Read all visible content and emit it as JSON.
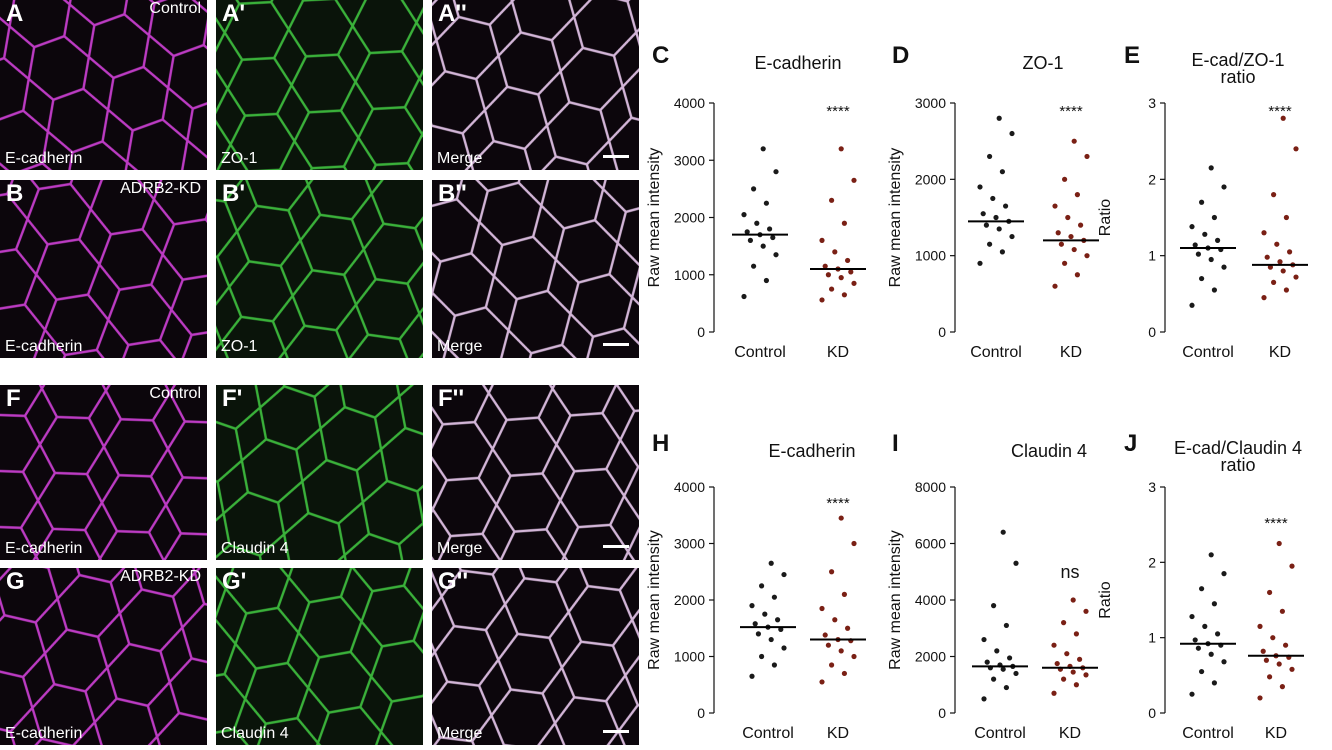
{
  "panels": [
    {
      "label": "A",
      "corner_text": "Control",
      "bottom_text": "E-cadherin",
      "channel": "magenta",
      "scale_bar": false
    },
    {
      "label": "A'",
      "bottom_text": "ZO-1",
      "channel": "green",
      "scale_bar": false
    },
    {
      "label": "A''",
      "bottom_text": "Merge",
      "channel": "merge",
      "scale_bar": true
    },
    {
      "label": "B",
      "corner_text": "ADRB2-KD",
      "bottom_text": "E-cadherin",
      "channel": "magenta",
      "scale_bar": false
    },
    {
      "label": "B'",
      "bottom_text": "ZO-1",
      "channel": "green",
      "scale_bar": false
    },
    {
      "label": "B''",
      "bottom_text": "Merge",
      "channel": "merge",
      "scale_bar": true
    },
    {
      "label": "F",
      "corner_text": "Control",
      "bottom_text": "E-cadherin",
      "channel": "magenta",
      "scale_bar": false
    },
    {
      "label": "F'",
      "bottom_text": "Claudin 4",
      "channel": "green",
      "scale_bar": false
    },
    {
      "label": "F''",
      "bottom_text": "Merge",
      "channel": "merge",
      "scale_bar": true
    },
    {
      "label": "G",
      "corner_text": "ADRB2-KD",
      "bottom_text": "E-cadherin",
      "channel": "magenta",
      "scale_bar": false
    },
    {
      "label": "G'",
      "bottom_text": "Claudin 4",
      "channel": "green",
      "scale_bar": false
    },
    {
      "label": "G''",
      "bottom_text": "Merge",
      "channel": "merge",
      "scale_bar": true
    }
  ],
  "chart_data": [
    {
      "type": "swarm",
      "panel_label": "C",
      "title": "E-cadherin",
      "y_label": "Raw mean intensity",
      "categories": [
        "Control",
        "KD"
      ],
      "groups": [
        {
          "color": "#1a1a1a",
          "median": 1700,
          "values": [
            620,
            900,
            1150,
            1350,
            1500,
            1600,
            1650,
            1700,
            1750,
            1800,
            1900,
            2050,
            2250,
            2500,
            2800,
            3200
          ]
        },
        {
          "color": "#7a2015",
          "median": 1100,
          "values": [
            560,
            650,
            750,
            850,
            950,
            1000,
            1050,
            1100,
            1150,
            1250,
            1400,
            1600,
            1900,
            2300,
            2650,
            3200
          ]
        }
      ],
      "significance": "****",
      "ylim": [
        0,
        4000
      ],
      "yticks": [
        0,
        1000,
        2000,
        3000,
        4000
      ]
    },
    {
      "type": "swarm",
      "panel_label": "D",
      "title": "ZO-1",
      "y_label": "Raw mean intensity",
      "categories": [
        "Control",
        "KD"
      ],
      "groups": [
        {
          "color": "#1a1a1a",
          "median": 1450,
          "values": [
            900,
            1050,
            1150,
            1250,
            1350,
            1400,
            1450,
            1500,
            1550,
            1650,
            1750,
            1900,
            2100,
            2300,
            2600,
            2800
          ]
        },
        {
          "color": "#7a2015",
          "median": 1200,
          "values": [
            600,
            750,
            900,
            1000,
            1080,
            1150,
            1200,
            1250,
            1300,
            1400,
            1500,
            1650,
            1800,
            2000,
            2300,
            2500
          ]
        }
      ],
      "significance": "****",
      "ylim": [
        0,
        3000
      ],
      "yticks": [
        0,
        1000,
        2000,
        3000
      ]
    },
    {
      "type": "swarm",
      "panel_label": "E",
      "title": "E-cad/ZO-1 ratio",
      "y_label": "Ratio",
      "categories": [
        "Control",
        "KD"
      ],
      "groups": [
        {
          "color": "#1a1a1a",
          "median": 1.1,
          "values": [
            0.35,
            0.55,
            0.7,
            0.85,
            0.95,
            1.02,
            1.08,
            1.1,
            1.14,
            1.2,
            1.28,
            1.38,
            1.5,
            1.7,
            1.9,
            2.15
          ]
        },
        {
          "color": "#7a2015",
          "median": 0.88,
          "values": [
            0.45,
            0.55,
            0.65,
            0.72,
            0.8,
            0.85,
            0.88,
            0.92,
            0.98,
            1.05,
            1.15,
            1.3,
            1.5,
            1.8,
            2.4,
            2.8
          ]
        }
      ],
      "significance": "****",
      "ylim": [
        0,
        3
      ],
      "yticks": [
        0,
        1,
        2,
        3
      ]
    },
    {
      "type": "swarm",
      "panel_label": "H",
      "title": "E-cadherin",
      "y_label": "Raw mean intensity",
      "categories": [
        "Control",
        "KD"
      ],
      "groups": [
        {
          "color": "#1a1a1a",
          "median": 1520,
          "values": [
            650,
            850,
            1000,
            1150,
            1300,
            1400,
            1480,
            1520,
            1580,
            1650,
            1750,
            1900,
            2050,
            2250,
            2450,
            2650
          ]
        },
        {
          "color": "#7a2015",
          "median": 1300,
          "values": [
            550,
            700,
            850,
            1000,
            1100,
            1200,
            1280,
            1300,
            1380,
            1500,
            1650,
            1850,
            2100,
            2500,
            3000,
            3450
          ]
        }
      ],
      "significance": "****",
      "ylim": [
        0,
        4000
      ],
      "yticks": [
        0,
        1000,
        2000,
        3000,
        4000
      ]
    },
    {
      "type": "swarm",
      "panel_label": "I",
      "title": "Claudin 4",
      "y_label": "Raw mean intensity",
      "categories": [
        "Control",
        "KD"
      ],
      "groups": [
        {
          "color": "#1a1a1a",
          "median": 1650,
          "values": [
            500,
            900,
            1200,
            1400,
            1550,
            1600,
            1650,
            1700,
            1800,
            1950,
            2200,
            2600,
            3100,
            3800,
            5300,
            6400
          ]
        },
        {
          "color": "#7a2015",
          "median": 1600,
          "values": [
            700,
            1000,
            1200,
            1350,
            1450,
            1550,
            1600,
            1650,
            1750,
            1900,
            2100,
            2400,
            2800,
            3200,
            3600,
            4000
          ]
        }
      ],
      "significance": "ns",
      "ylim": [
        0,
        8000
      ],
      "yticks": [
        0,
        2000,
        4000,
        6000,
        8000
      ]
    },
    {
      "type": "swarm",
      "panel_label": "J",
      "title": "E-cad/Claudin 4 ratio",
      "y_label": "Ratio",
      "categories": [
        "Control",
        "KD"
      ],
      "groups": [
        {
          "color": "#1a1a1a",
          "median": 0.92,
          "values": [
            0.25,
            0.4,
            0.55,
            0.68,
            0.78,
            0.86,
            0.9,
            0.92,
            0.97,
            1.05,
            1.15,
            1.28,
            1.45,
            1.65,
            1.85,
            2.1
          ]
        },
        {
          "color": "#7a2015",
          "median": 0.76,
          "values": [
            0.2,
            0.35,
            0.48,
            0.58,
            0.65,
            0.7,
            0.74,
            0.76,
            0.82,
            0.9,
            1.0,
            1.15,
            1.35,
            1.6,
            1.95,
            2.25
          ]
        }
      ],
      "significance": "****",
      "ylim": [
        0,
        3
      ],
      "yticks": [
        0,
        1,
        2,
        3
      ]
    }
  ]
}
